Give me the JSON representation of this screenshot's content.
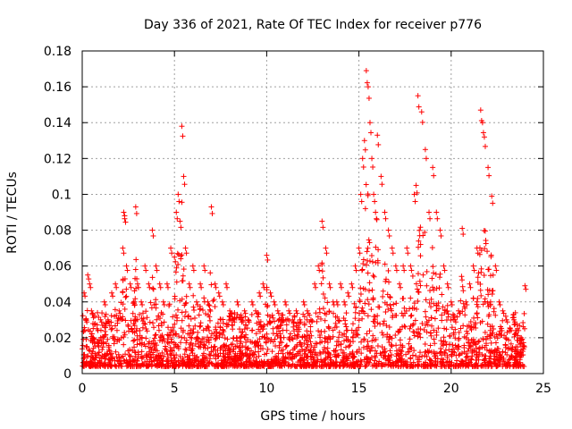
{
  "chart_data": {
    "type": "scatter",
    "title": "Day 336 of 2021, Rate Of TEC Index for receiver p776",
    "xlabel": "GPS time / hours",
    "ylabel": "ROTI / TECUs",
    "xlim": [
      0,
      25
    ],
    "ylim": [
      0,
      0.18
    ],
    "x_ticks": [
      0,
      5,
      10,
      15,
      20,
      25
    ],
    "y_ticks": [
      0,
      0.02,
      0.04,
      0.06,
      0.08,
      0.1,
      0.12,
      0.14,
      0.16,
      0.18
    ],
    "x_tick_labels": [
      "0",
      "5",
      "10",
      "15",
      "20",
      "25"
    ],
    "y_tick_labels": [
      "0",
      "0.02",
      "0.04",
      "0.06",
      "0.08",
      "0.1",
      "0.12",
      "0.14",
      "0.16",
      "0.18"
    ],
    "grid": true,
    "marker": "plus",
    "color": "#ff0000",
    "series": [
      {
        "x": [
          0.1,
          0.2,
          0.3,
          0.4,
          0.5,
          0.6,
          0.8,
          1.0,
          1.2,
          1.4,
          1.6,
          1.8,
          2.0,
          2.2,
          2.25,
          2.3,
          2.4,
          2.6,
          2.8,
          2.9,
          3.0,
          3.2,
          3.4,
          3.6,
          3.8,
          4.0,
          4.2,
          4.4,
          4.6,
          4.8,
          5.0,
          5.1,
          5.2,
          5.3,
          5.4,
          5.5,
          5.6,
          5.8,
          6.0,
          6.2,
          6.4,
          6.6,
          6.8,
          7.0,
          7.2,
          7.4,
          7.6,
          7.8,
          8.0,
          8.2,
          8.4,
          8.6,
          8.8,
          9.0,
          9.2,
          9.4,
          9.6,
          9.8,
          10.0,
          10.2,
          10.4,
          10.6,
          10.8,
          11.0,
          11.2,
          11.4,
          11.6,
          11.8,
          12.0,
          12.2,
          12.4,
          12.6,
          12.8,
          13.0,
          13.2,
          13.4,
          13.6,
          13.8,
          14.0,
          14.2,
          14.4,
          14.6,
          14.8,
          15.0,
          15.1,
          15.2,
          15.3,
          15.4,
          15.5,
          15.6,
          15.7,
          15.8,
          15.9,
          16.0,
          16.2,
          16.4,
          16.6,
          16.8,
          17.0,
          17.2,
          17.4,
          17.6,
          17.8,
          18.0,
          18.1,
          18.2,
          18.4,
          18.6,
          18.8,
          19.0,
          19.2,
          19.4,
          19.6,
          19.8,
          20.0,
          20.2,
          20.4,
          20.6,
          20.8,
          21.0,
          21.2,
          21.4,
          21.6,
          21.7,
          21.8,
          22.0,
          22.2,
          22.4,
          22.6,
          22.8,
          23.0,
          23.2,
          23.4,
          23.6,
          23.8,
          24.0
        ],
        "y": [
          0.045,
          0.03,
          0.055,
          0.05,
          0.035,
          0.02,
          0.025,
          0.03,
          0.04,
          0.03,
          0.045,
          0.05,
          0.035,
          0.07,
          0.09,
          0.088,
          0.06,
          0.05,
          0.04,
          0.093,
          0.05,
          0.04,
          0.06,
          0.05,
          0.08,
          0.06,
          0.05,
          0.04,
          0.05,
          0.07,
          0.065,
          0.09,
          0.1,
          0.085,
          0.138,
          0.11,
          0.07,
          0.05,
          0.06,
          0.04,
          0.05,
          0.06,
          0.04,
          0.093,
          0.05,
          0.045,
          0.04,
          0.05,
          0.035,
          0.03,
          0.04,
          0.03,
          0.035,
          0.03,
          0.04,
          0.035,
          0.045,
          0.05,
          0.066,
          0.045,
          0.04,
          0.035,
          0.03,
          0.04,
          0.035,
          0.03,
          0.035,
          0.03,
          0.04,
          0.035,
          0.03,
          0.05,
          0.06,
          0.085,
          0.07,
          0.05,
          0.04,
          0.04,
          0.05,
          0.04,
          0.045,
          0.05,
          0.06,
          0.07,
          0.1,
          0.12,
          0.13,
          0.169,
          0.16,
          0.14,
          0.12,
          0.1,
          0.09,
          0.133,
          0.11,
          0.09,
          0.08,
          0.07,
          0.06,
          0.05,
          0.06,
          0.07,
          0.06,
          0.1,
          0.105,
          0.155,
          0.146,
          0.125,
          0.09,
          0.115,
          0.09,
          0.08,
          0.06,
          0.05,
          0.04,
          0.03,
          0.035,
          0.081,
          0.04,
          0.05,
          0.06,
          0.07,
          0.147,
          0.14,
          0.132,
          0.115,
          0.099,
          0.06,
          0.04,
          0.035,
          0.03,
          0.025,
          0.03,
          0.025,
          0.02,
          0.049
        ]
      }
    ]
  }
}
